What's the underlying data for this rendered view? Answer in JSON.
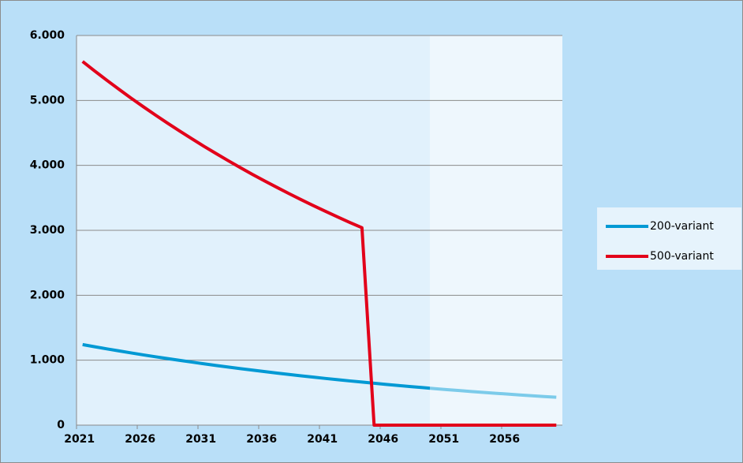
{
  "chart_data": {
    "type": "line",
    "categories": [
      "2021",
      null,
      null,
      null,
      null,
      "2026",
      null,
      null,
      null,
      null,
      "2031",
      null,
      null,
      null,
      null,
      "2036",
      null,
      null,
      null,
      null,
      "2041",
      null,
      null,
      null,
      null,
      "2046",
      null,
      null,
      null,
      null,
      "2051",
      null,
      null,
      null,
      null,
      "2056",
      null,
      null,
      null,
      null
    ],
    "series": [
      {
        "name": "200-variant",
        "color": "#0099d4",
        "values": [
          1240,
          1207,
          1174,
          1143,
          1112,
          1082,
          1053,
          1025,
          997,
          971,
          944,
          919,
          894,
          870,
          847,
          824,
          802,
          780,
          759,
          739,
          719,
          700,
          681,
          663,
          645,
          627,
          610,
          594,
          578,
          562,
          547,
          533,
          518,
          504,
          491,
          478,
          465,
          452,
          440,
          430
        ]
      },
      {
        "name": "500-variant",
        "color": "#e2001a",
        "values": [
          5600,
          5453,
          5310,
          5171,
          5035,
          4903,
          4775,
          4650,
          4528,
          4409,
          4293,
          4181,
          4071,
          3964,
          3860,
          3759,
          3661,
          3565,
          3471,
          3380,
          3292,
          3205,
          3121,
          3040,
          0,
          0,
          0,
          0,
          0,
          0,
          0,
          0,
          0,
          0,
          0,
          0,
          0,
          0,
          0,
          0
        ]
      }
    ],
    "ylim": [
      0,
      6000
    ],
    "yticks": [
      0,
      {
        "value": 1000,
        "label": "1.000"
      },
      {
        "value": 2000,
        "label": "2.000"
      },
      {
        "value": 3000,
        "label": "3.000"
      },
      {
        "value": 4000,
        "label": "4.000"
      },
      {
        "value": 5000,
        "label": "5.000"
      },
      {
        "value": 6000,
        "label": "6.000"
      }
    ],
    "grid": true,
    "legend": "right"
  }
}
